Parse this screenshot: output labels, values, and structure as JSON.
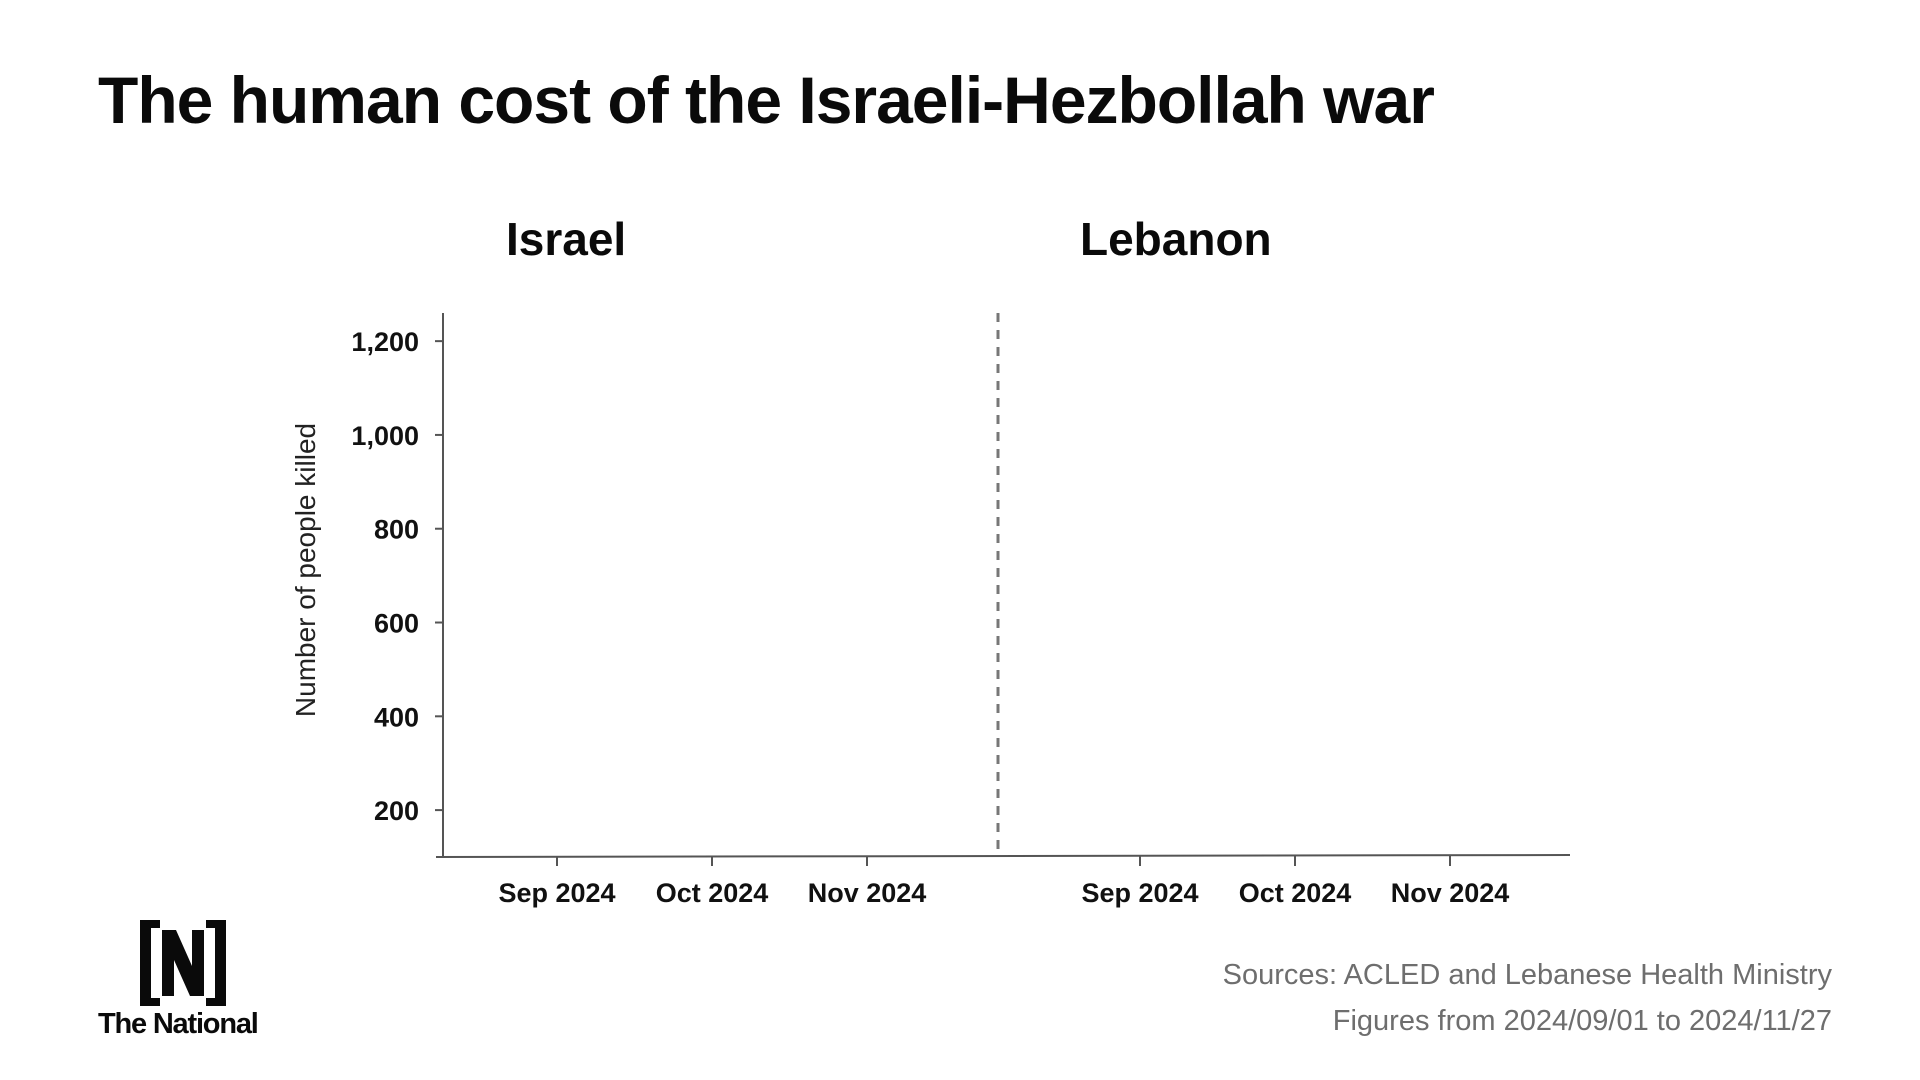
{
  "header": {
    "title": "The human cost of the Israeli-Hezbollah war"
  },
  "chart_data": {
    "type": "line",
    "ylabel": "Number of people killed",
    "ylim": [
      100,
      1260
    ],
    "yticks": [
      200,
      400,
      600,
      800,
      1000,
      1200
    ],
    "ytick_labels": [
      "200",
      "400",
      "600",
      "800",
      "1,000",
      "1,200"
    ],
    "panels": [
      {
        "title": "Israel",
        "x_tick_labels": [
          "Sep 2024",
          "Oct 2024",
          "Nov 2024"
        ],
        "series": []
      },
      {
        "title": "Lebanon",
        "x_tick_labels": [
          "Sep 2024",
          "Oct 2024",
          "Nov 2024"
        ],
        "series": []
      }
    ],
    "divider": "dashed"
  },
  "footer": {
    "logo_text": "The National",
    "source_line": "Sources: ACLED and Lebanese Health Ministry",
    "date_range_line": "Figures from 2024/09/01 to 2024/11/27"
  },
  "colors": {
    "axis": "#555555",
    "divider": "#777777",
    "text": "#111111",
    "muted": "#6e6e6e"
  }
}
